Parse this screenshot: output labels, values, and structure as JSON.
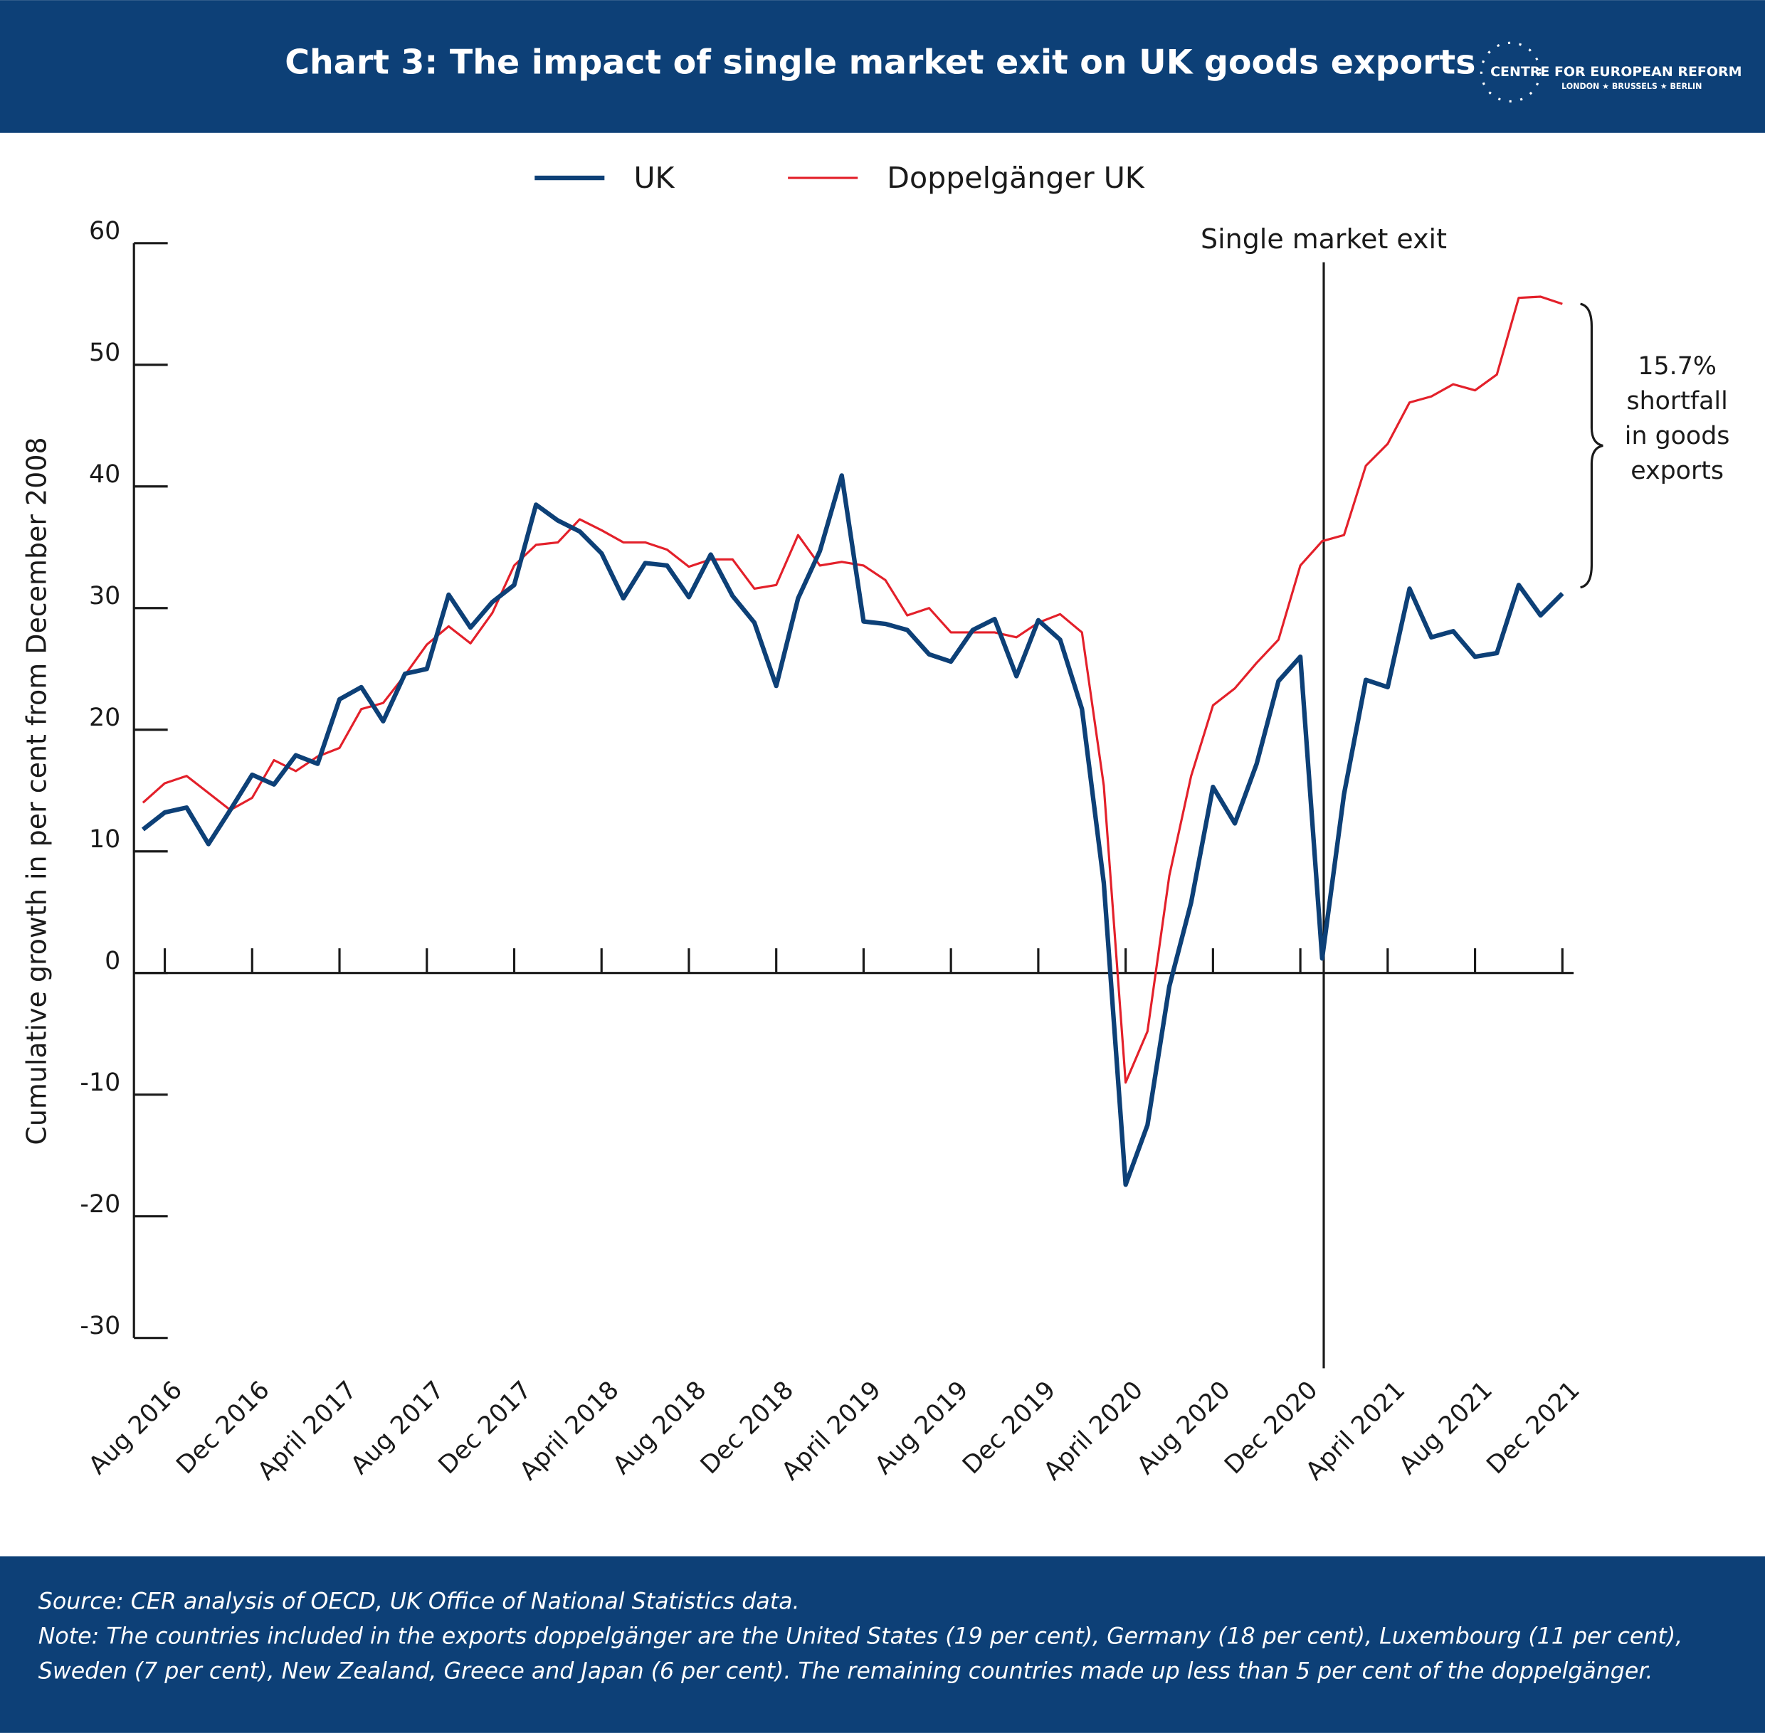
{
  "chart_data": {
    "type": "line",
    "title": "Chart 3: The impact of single market exit on UK goods exports",
    "logo": {
      "name": "CENTRE FOR EUROPEAN REFORM",
      "cities": "LONDON ★ BRUSSELS ★ BERLIN"
    },
    "y_label": "Cumulative growth in per cent from December 2008",
    "annotation": "Single market exit",
    "brace_label": [
      "15.7%",
      "shortfall",
      "in goods",
      "exports"
    ],
    "categories": [
      null,
      "Aug 2016",
      null,
      null,
      null,
      "Dec 2016",
      null,
      null,
      null,
      "April 2017",
      null,
      null,
      null,
      "Aug 2017",
      null,
      null,
      null,
      "Dec 2017",
      null,
      null,
      null,
      "April 2018",
      null,
      null,
      null,
      "Aug 2018",
      null,
      null,
      null,
      "Dec 2018",
      null,
      null,
      null,
      "April  2019",
      null,
      null,
      null,
      "Aug 2019",
      null,
      null,
      null,
      "Dec 2019",
      null,
      null,
      null,
      "April 2020",
      null,
      null,
      null,
      "Aug 2020",
      null,
      null,
      null,
      "Dec 2020",
      null,
      null,
      null,
      "April 2021",
      null,
      null,
      null,
      "Aug 2021",
      null,
      null,
      null,
      "Dec 2021"
    ],
    "series": [
      {
        "name": "UK",
        "color": "#0d4077",
        "width": 4,
        "values": [
          11.8,
          13.2,
          13.6,
          10.6,
          13.4,
          16.3,
          15.5,
          17.9,
          17.2,
          22.5,
          23.5,
          20.7,
          24.6,
          25.0,
          31.1,
          28.4,
          30.5,
          31.9,
          38.5,
          37.2,
          36.3,
          34.5,
          30.8,
          33.7,
          33.5,
          30.9,
          34.4,
          31.0,
          28.8,
          23.6,
          30.8,
          34.7,
          40.9,
          28.9,
          28.7,
          28.2,
          26.2,
          25.6,
          28.2,
          29.1,
          24.4,
          29.0,
          27.4,
          21.7,
          7.4,
          -17.4,
          -12.5,
          -1.1,
          5.8,
          15.3,
          12.3,
          17.2,
          24.0,
          26.0,
          1.2,
          14.7,
          24.1,
          23.5,
          31.6,
          27.6,
          28.1,
          26.0,
          26.3,
          31.9,
          29.4,
          31.2
        ]
      },
      {
        "name": "Doppelgänger UK",
        "color": "#e3202a",
        "width": 2,
        "values": [
          14.0,
          15.6,
          16.2,
          14.8,
          13.4,
          14.4,
          17.5,
          16.6,
          17.8,
          18.5,
          21.7,
          22.2,
          24.5,
          27.0,
          28.5,
          27.1,
          29.6,
          33.5,
          35.2,
          35.4,
          37.3,
          36.4,
          35.4,
          35.4,
          34.8,
          33.4,
          34.0,
          34.0,
          31.6,
          31.9,
          36.0,
          33.5,
          33.8,
          33.5,
          32.3,
          29.4,
          30.0,
          28.0,
          28.0,
          28.0,
          27.6,
          28.8,
          29.5,
          28.0,
          15.4,
          -9.0,
          -4.8,
          8.0,
          16.2,
          22.0,
          23.4,
          25.5,
          27.4,
          33.5,
          35.5,
          36.0,
          41.7,
          43.5,
          46.9,
          47.4,
          48.4,
          47.9,
          49.2,
          55.5,
          55.6,
          55.0
        ]
      }
    ],
    "ylim": [
      -30,
      60
    ],
    "yticks": [
      -30,
      -20,
      -10,
      0,
      10,
      20,
      30,
      40,
      50,
      60
    ],
    "source": "Source: CER analysis of OECD, UK Office of National Statistics data.",
    "note": [
      "Note: The countries included in the exports doppelgänger are the United States (19 per cent), Germany (18 per cent), Luxembourg (11 per cent),",
      "Sweden (7 per cent), New Zealand, Greece and Japan (6 per cent). The remaining countries made up less than 5 per cent of the doppelgänger."
    ]
  }
}
